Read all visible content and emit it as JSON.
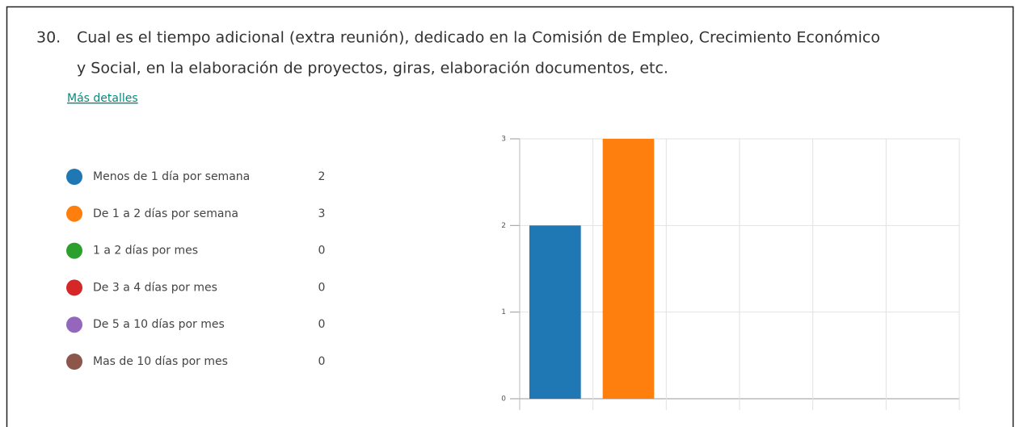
{
  "question": {
    "number": "30.",
    "lines": [
      "Cual es el tiempo adicional (extra reunión), dedicado en la Comisión de Empleo, Crecimiento Económico",
      "y Social, en la elaboración de proyectos, giras, elaboración documentos, etc."
    ],
    "details_link": "Más detalles"
  },
  "chart_data": {
    "type": "bar",
    "categories": [
      "Menos de 1 día por semana",
      "De 1 a 2 días por semana",
      "1 a 2 días por mes",
      "De 3 a 4 días por mes",
      "De 5 a 10 días por mes",
      "Mas de 10 días por mes"
    ],
    "values": [
      2,
      3,
      0,
      0,
      0,
      0
    ],
    "colors": [
      "#1f77b4",
      "#ff7f0e",
      "#2ca02c",
      "#d62728",
      "#9467bd",
      "#8c564b"
    ],
    "ylim": [
      0,
      3
    ],
    "yticks": [
      0,
      1,
      2,
      3
    ],
    "grid": true
  }
}
